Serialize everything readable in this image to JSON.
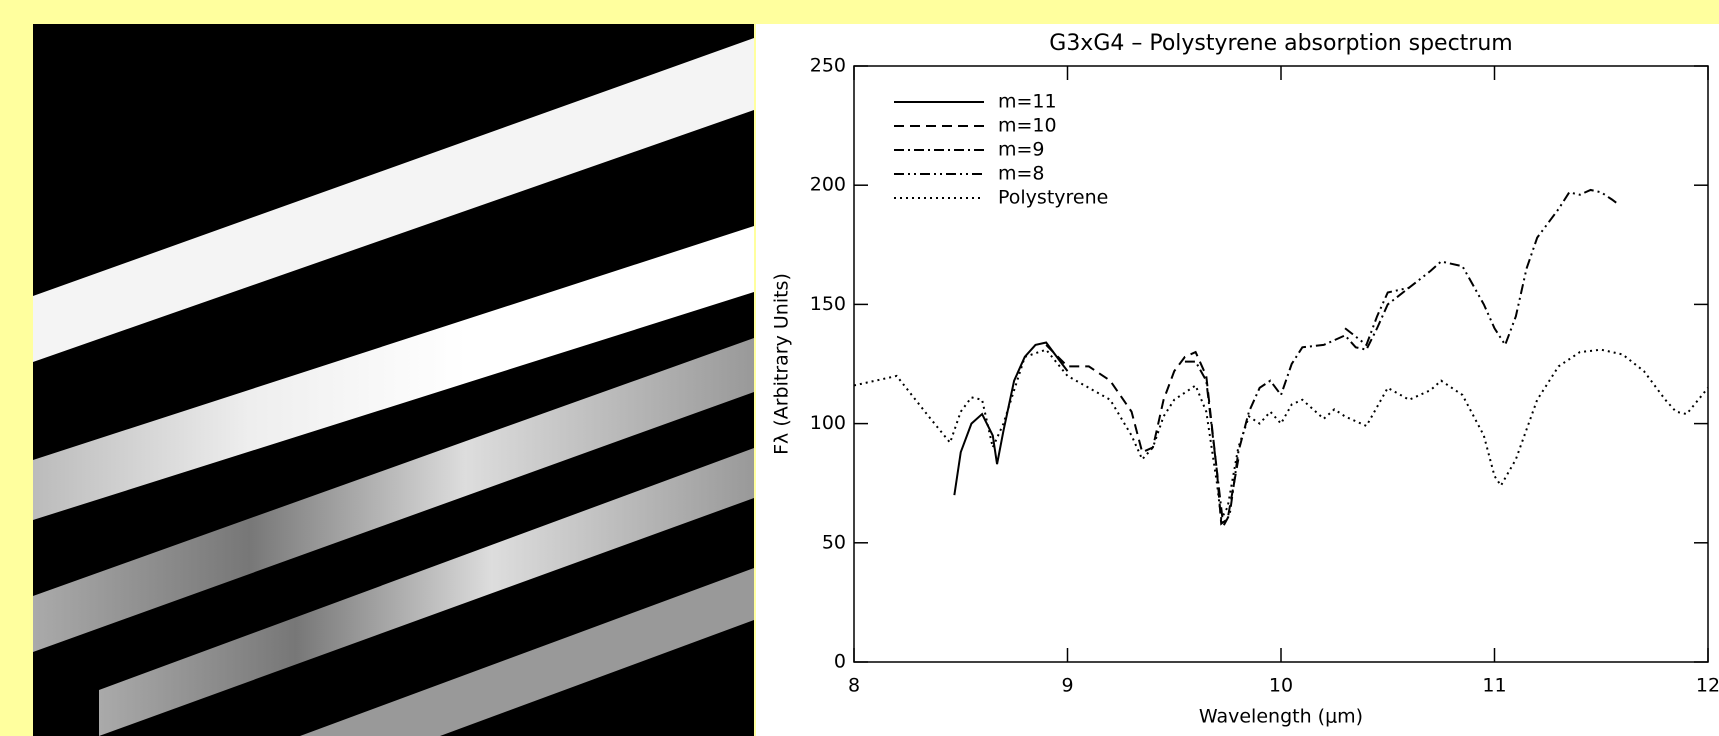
{
  "chart_data": {
    "type": "line",
    "title": "G3xG4 – Polystyrene absorption spectrum",
    "x_label": "Wavelength (μm)",
    "y_label": "Fλ (Arbitrary Units)",
    "xlim": [
      8,
      12
    ],
    "ylim": [
      0,
      250
    ],
    "xticks": [
      8,
      9,
      10,
      11,
      12
    ],
    "yticks": [
      0,
      50,
      100,
      150,
      200,
      250
    ],
    "legend": "top-left",
    "series": [
      {
        "name": "m=11",
        "color": "#000000",
        "dash": "solid",
        "x": [
          8.47,
          8.5,
          8.55,
          8.6,
          8.65,
          8.67,
          8.7,
          8.75,
          8.8,
          8.85,
          8.9,
          8.95,
          9.0
        ],
        "values": [
          70,
          88,
          100,
          104,
          95,
          83,
          97,
          118,
          128,
          133,
          134,
          128,
          122
        ]
      },
      {
        "name": "m=10",
        "color": "#000000",
        "dash": "dashed",
        "x": [
          8.9,
          9.0,
          9.1,
          9.2,
          9.3,
          9.35,
          9.4,
          9.45,
          9.5,
          9.55,
          9.6,
          9.65,
          9.7,
          9.72,
          9.75,
          9.8
        ],
        "values": [
          133,
          124,
          124,
          118,
          105,
          88,
          90,
          110,
          122,
          128,
          130,
          120,
          80,
          58,
          60,
          85
        ]
      },
      {
        "name": "m=9",
        "color": "#000000",
        "dash": "dash-dot",
        "x": [
          9.55,
          9.6,
          9.65,
          9.7,
          9.73,
          9.76,
          9.8,
          9.85,
          9.9,
          9.95,
          10.0,
          10.05,
          10.1,
          10.2,
          10.3,
          10.35,
          10.4,
          10.45,
          10.5,
          10.6
        ],
        "values": [
          126,
          126,
          118,
          80,
          57,
          62,
          88,
          105,
          115,
          118,
          112,
          125,
          132,
          133,
          137,
          132,
          131,
          140,
          150,
          157
        ]
      },
      {
        "name": "m=8",
        "color": "#000000",
        "dash": "dash-dot-dot",
        "x": [
          10.3,
          10.4,
          10.45,
          10.5,
          10.6,
          10.7,
          10.75,
          10.85,
          10.95,
          11.0,
          11.05,
          11.1,
          11.15,
          11.2,
          11.3,
          11.35,
          11.4,
          11.45,
          11.5,
          11.55,
          11.58
        ],
        "values": [
          140,
          133,
          145,
          155,
          157,
          164,
          168,
          166,
          150,
          140,
          133,
          145,
          165,
          178,
          190,
          197,
          196,
          198,
          197,
          194,
          192
        ]
      },
      {
        "name": "Polystyrene",
        "color": "#000000",
        "dash": "dotted",
        "x": [
          8.0,
          8.2,
          8.35,
          8.45,
          8.5,
          8.55,
          8.6,
          8.65,
          8.7,
          8.8,
          8.9,
          9.0,
          9.1,
          9.2,
          9.3,
          9.35,
          9.4,
          9.45,
          9.5,
          9.6,
          9.65,
          9.7,
          9.72,
          9.75,
          9.8,
          9.85,
          9.9,
          9.95,
          10.0,
          10.05,
          10.1,
          10.2,
          10.25,
          10.3,
          10.4,
          10.5,
          10.6,
          10.7,
          10.75,
          10.85,
          10.95,
          11.0,
          11.03,
          11.1,
          11.2,
          11.3,
          11.4,
          11.5,
          11.6,
          11.7,
          11.8,
          11.85,
          11.9,
          12.0
        ],
        "values": [
          116,
          120,
          103,
          92,
          105,
          111,
          110,
          90,
          100,
          128,
          131,
          120,
          115,
          110,
          95,
          85,
          90,
          103,
          110,
          116,
          105,
          75,
          60,
          65,
          90,
          103,
          100,
          105,
          100,
          108,
          110,
          102,
          106,
          103,
          99,
          115,
          110,
          114,
          118,
          112,
          95,
          78,
          74,
          85,
          110,
          124,
          130,
          131,
          129,
          122,
          110,
          105,
          104,
          115
        ]
      }
    ]
  }
}
